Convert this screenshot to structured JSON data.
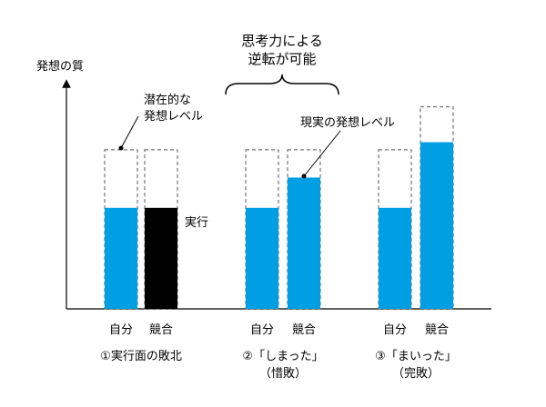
{
  "axis": {
    "y_label": "発想の質"
  },
  "callouts": {
    "potential": [
      "潜在的な",
      "発想レベル"
    ],
    "actual": "現実の発想レベル",
    "execution": "実行",
    "reversal": [
      "思考力による",
      "逆転が可能"
    ]
  },
  "groups": [
    {
      "caption": [
        "①実行面の敗北"
      ],
      "self_label": "自分",
      "comp_label": "競合"
    },
    {
      "caption": [
        "②「しまった」",
        "（惜敗）"
      ],
      "self_label": "自分",
      "comp_label": "競合"
    },
    {
      "caption": [
        "③「まいった」",
        "（完敗）"
      ],
      "self_label": "自分",
      "comp_label": "競合"
    }
  ],
  "chart_data": {
    "type": "bar",
    "categories": [
      "①実行面の敗北",
      "②「しまった」（惜敗）",
      "③「まいった」（完敗）"
    ],
    "series": [
      {
        "name": "自分",
        "potential": [
          0.63,
          0.63,
          0.63
        ],
        "actual": [
          0.4,
          0.4,
          0.4
        ]
      },
      {
        "name": "競合",
        "potential": [
          0.63,
          0.63,
          0.8
        ],
        "actual": [
          0.4,
          0.52,
          0.66
        ],
        "fill": [
          "black",
          "blue",
          "blue"
        ]
      }
    ],
    "colors": {
      "blue": "#009fe3",
      "black": "#000000",
      "outline": "#555555"
    }
  }
}
